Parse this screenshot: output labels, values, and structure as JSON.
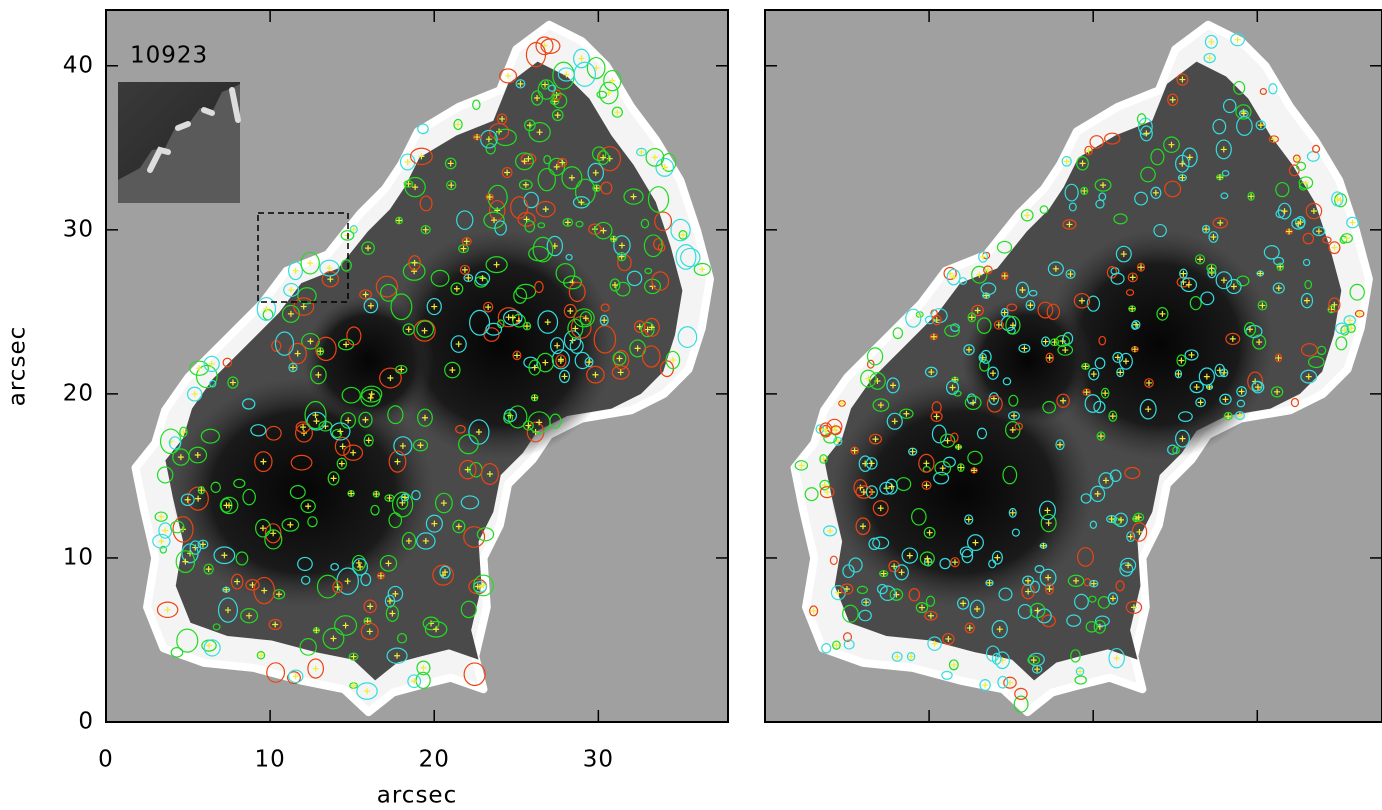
{
  "chart_data": [
    {
      "type": "image",
      "annotation": "10923",
      "xlabel": "arcsec",
      "ylabel": "arcsec",
      "xlim": [
        0,
        37.9
      ],
      "ylim": [
        0,
        43.4
      ],
      "xticks": [
        0,
        10,
        20,
        30
      ],
      "yticks": [
        0,
        10,
        20,
        30,
        40
      ],
      "tick_labels": true
    },
    {
      "type": "image",
      "xlim": [
        0,
        37.6
      ],
      "ylim": [
        0,
        43.4
      ],
      "xticks": [
        0,
        10,
        20,
        30
      ],
      "yticks": [
        0,
        10,
        20,
        30,
        40
      ],
      "tick_labels": false
    }
  ]
}
